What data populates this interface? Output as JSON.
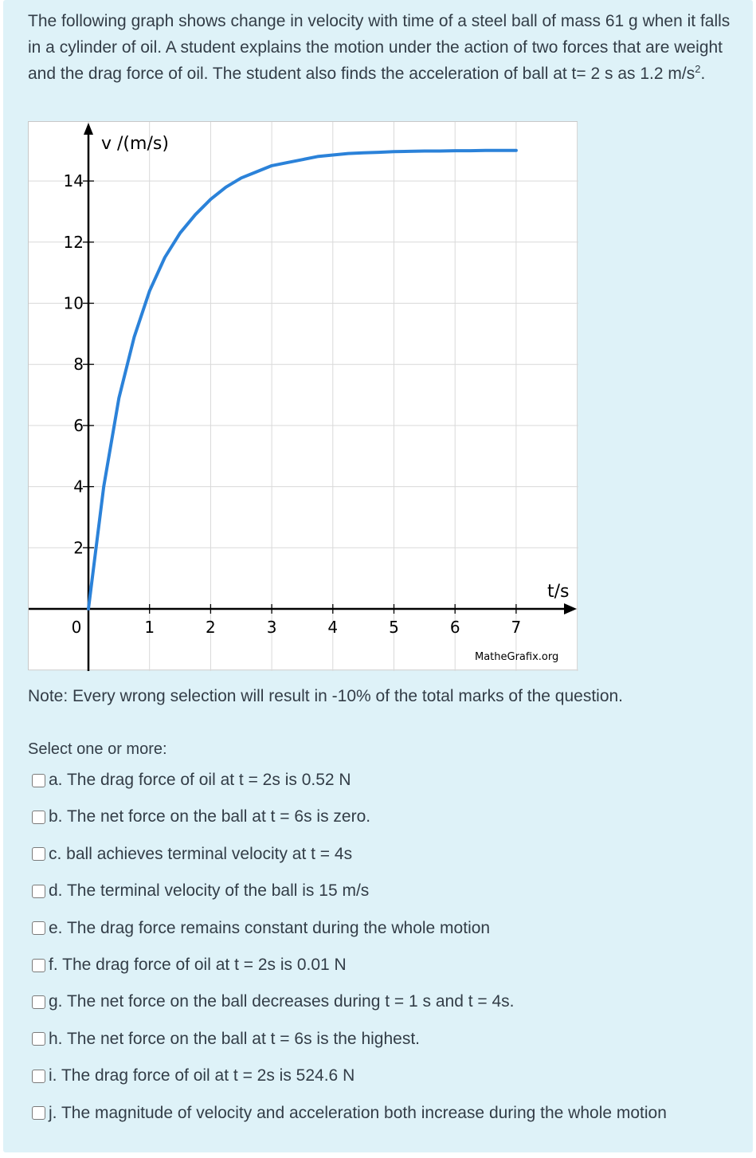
{
  "question": {
    "text": "The following graph shows change in velocity with time of a steel ball of mass 61 g when it falls in a cylinder of  oil. A student explains the motion under the action of two forces that are weight and the drag force of oil. The student also finds the acceleration of ball at t= 2 s as 1.2 m/s",
    "superscript": "2",
    "end": "."
  },
  "chart_data": {
    "type": "line",
    "xlabel": "t/s",
    "ylabel": "v /(m/s)",
    "x_ticks": [
      "0",
      "1",
      "2",
      "3",
      "4",
      "5",
      "6",
      "7"
    ],
    "y_ticks": [
      "2",
      "4",
      "6",
      "8",
      "10",
      "12",
      "14"
    ],
    "xlim": [
      0,
      7
    ],
    "ylim": [
      0,
      14
    ],
    "grid": true,
    "curve_color": "#2b82d9",
    "credit": "MatheGrafix.org",
    "series": [
      {
        "x": [
          0,
          0.25,
          0.5,
          0.75,
          1,
          1.25,
          1.5,
          1.75,
          2,
          2.25,
          2.5,
          2.75,
          3,
          3.25,
          3.5,
          3.75,
          4,
          4.25,
          4.5,
          4.75,
          5,
          5.25,
          5.5,
          5.75,
          6,
          6.25,
          6.5,
          6.75,
          7
        ],
        "y": [
          0,
          4.0,
          6.9,
          8.9,
          10.4,
          11.5,
          12.3,
          12.9,
          13.4,
          13.8,
          14.1,
          14.3,
          14.5,
          14.6,
          14.7,
          14.8,
          14.85,
          14.9,
          14.92,
          14.94,
          14.96,
          14.97,
          14.98,
          14.98,
          14.99,
          14.99,
          15.0,
          15.0,
          15.0
        ]
      }
    ]
  },
  "note": "Note: Every wrong selection will result in -10% of the total marks of the question.",
  "prompt": "Select one or more:",
  "options": [
    {
      "label": "a. The drag force of oil at t = 2s is 0.52 N"
    },
    {
      "label": "b. The net force on the ball at t = 6s is zero."
    },
    {
      "label": "c. ball achieves terminal velocity at t = 4s"
    },
    {
      "label": "d. The terminal velocity of the ball is 15 m/s"
    },
    {
      "label": "e. The drag force remains constant during the whole motion"
    },
    {
      "label": "f. The drag force of oil at t = 2s is 0.01 N"
    },
    {
      "label": "g. The net force on the ball decreases during t = 1 s and t = 4s."
    },
    {
      "label": "h. The net force on the ball at t = 6s is the highest."
    },
    {
      "label": "i. The drag force of oil at t = 2s is 524.6 N"
    },
    {
      "label": "j. The magnitude of velocity and acceleration both increase during the whole motion"
    }
  ]
}
